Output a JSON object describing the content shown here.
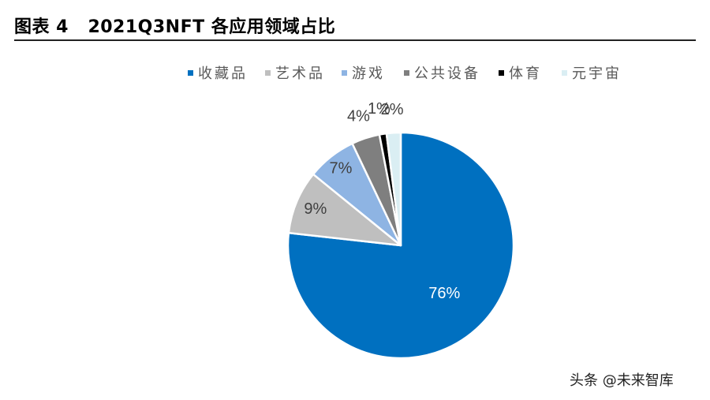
{
  "figure": {
    "title": "图表 4   2021Q3NFT 各应用领域占比"
  },
  "watermark": "头条 @未来智库",
  "chart_data": {
    "type": "pie",
    "title": "2021Q3NFT 各应用领域占比",
    "legend_position": "top",
    "start_angle_deg": 0,
    "direction": "clockwise",
    "categories": [
      "收藏品",
      "艺术品",
      "游戏",
      "公共设备",
      "体育",
      "元宇宙"
    ],
    "values": [
      76,
      9,
      7,
      4,
      1,
      2
    ],
    "labels": [
      "76%",
      "9%",
      "7%",
      "4%",
      "1%",
      "2%"
    ],
    "colors": [
      "#0070C0",
      "#BFBFBF",
      "#8EB4E3",
      "#7F7F7F",
      "#000000",
      "#DAEEF3"
    ],
    "label_colors": [
      "#ffffff",
      "#404040",
      "#404040",
      "#404040",
      "#404040",
      "#404040"
    ]
  }
}
